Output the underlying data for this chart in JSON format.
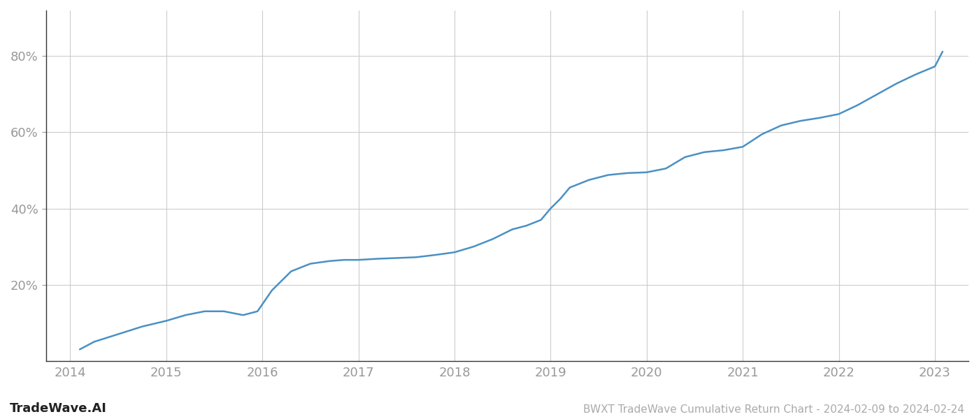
{
  "title": "BWXT TradeWave Cumulative Return Chart - 2024-02-09 to 2024-02-24",
  "watermark": "TradeWave.AI",
  "line_color": "#4a90c4",
  "background_color": "#ffffff",
  "grid_color": "#cccccc",
  "x_values": [
    2014.1,
    2014.25,
    2014.5,
    2014.75,
    2015.0,
    2015.2,
    2015.4,
    2015.6,
    2015.8,
    2015.95,
    2016.1,
    2016.3,
    2016.5,
    2016.7,
    2016.85,
    2017.0,
    2017.2,
    2017.4,
    2017.6,
    2017.8,
    2018.0,
    2018.2,
    2018.4,
    2018.6,
    2018.75,
    2018.9,
    2019.0,
    2019.1,
    2019.2,
    2019.4,
    2019.6,
    2019.8,
    2020.0,
    2020.2,
    2020.4,
    2020.6,
    2020.8,
    2021.0,
    2021.2,
    2021.4,
    2021.6,
    2021.8,
    2022.0,
    2022.2,
    2022.4,
    2022.6,
    2022.8,
    2023.0,
    2023.08
  ],
  "y_values": [
    0.03,
    0.05,
    0.07,
    0.09,
    0.105,
    0.12,
    0.13,
    0.13,
    0.12,
    0.13,
    0.185,
    0.235,
    0.255,
    0.262,
    0.265,
    0.265,
    0.268,
    0.27,
    0.272,
    0.278,
    0.285,
    0.3,
    0.32,
    0.345,
    0.355,
    0.37,
    0.4,
    0.425,
    0.455,
    0.475,
    0.488,
    0.493,
    0.495,
    0.505,
    0.535,
    0.548,
    0.553,
    0.562,
    0.595,
    0.618,
    0.63,
    0.638,
    0.648,
    0.672,
    0.7,
    0.728,
    0.752,
    0.773,
    0.812
  ],
  "xlim": [
    2013.75,
    2023.35
  ],
  "ylim": [
    0.0,
    0.92
  ],
  "yticks": [
    0.2,
    0.4,
    0.6,
    0.8
  ],
  "ytick_labels": [
    "20%",
    "40%",
    "60%",
    "80%"
  ],
  "xticks": [
    2014,
    2015,
    2016,
    2017,
    2018,
    2019,
    2020,
    2021,
    2022,
    2023
  ],
  "xtick_labels": [
    "2014",
    "2015",
    "2016",
    "2017",
    "2018",
    "2019",
    "2020",
    "2021",
    "2022",
    "2023"
  ],
  "tick_color": "#999999",
  "label_fontsize": 13,
  "title_fontsize": 11,
  "watermark_fontsize": 13,
  "line_width": 1.8
}
